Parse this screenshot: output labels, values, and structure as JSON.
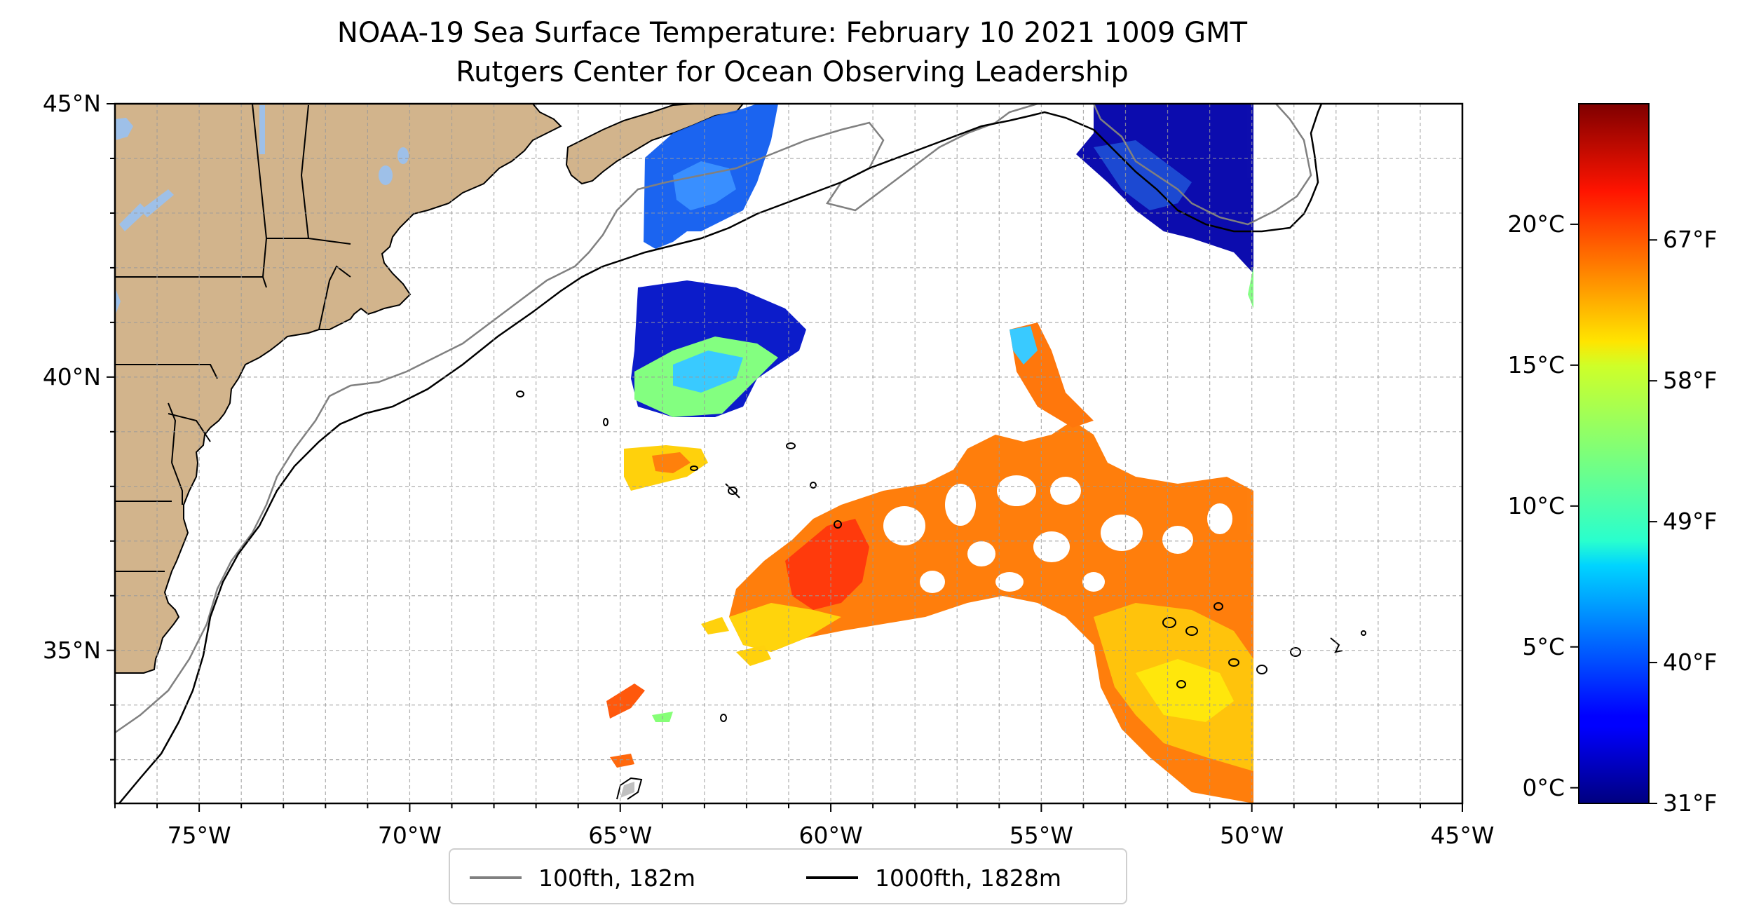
{
  "title": {
    "line1": "NOAA-19 Sea Surface Temperature: February 10 2021 1009 GMT",
    "line2": "Rutgers Center for Ocean Observing Leadership"
  },
  "map": {
    "lon_range": [
      -77,
      -45
    ],
    "lat_range": [
      32.2,
      45
    ],
    "lat_ticks": [
      {
        "value": 45,
        "label": "45°N"
      },
      {
        "value": 40,
        "label": "40°N"
      },
      {
        "value": 35,
        "label": "35°N"
      }
    ],
    "lon_ticks": [
      {
        "value": -75,
        "label": "75°W"
      },
      {
        "value": -70,
        "label": "70°W"
      },
      {
        "value": -65,
        "label": "65°W"
      },
      {
        "value": -60,
        "label": "60°W"
      },
      {
        "value": -55,
        "label": "55°W"
      },
      {
        "value": -50,
        "label": "50°W"
      },
      {
        "value": -45,
        "label": "45°W"
      }
    ],
    "land_color": "#d2b48c",
    "lake_color": "#9ec0e8",
    "gridlines": true
  },
  "colorbar": {
    "colormap": "jet",
    "celsius_ticks": [
      {
        "value": 0,
        "label": "0°C"
      },
      {
        "value": 5,
        "label": "5°C"
      },
      {
        "value": 10,
        "label": "10°C"
      },
      {
        "value": 15,
        "label": "15°C"
      },
      {
        "value": 20,
        "label": "20°C"
      }
    ],
    "fahrenheit_ticks": [
      {
        "value": 31,
        "label": "31°F"
      },
      {
        "value": 40,
        "label": "40°F"
      },
      {
        "value": 49,
        "label": "49°F"
      },
      {
        "value": 58,
        "label": "58°F"
      },
      {
        "value": 67,
        "label": "67°F"
      }
    ]
  },
  "legend": {
    "items": [
      {
        "label": "100fth, 182m",
        "color": "#808080"
      },
      {
        "label": "1000fth, 1828m",
        "color": "#000000"
      }
    ]
  }
}
